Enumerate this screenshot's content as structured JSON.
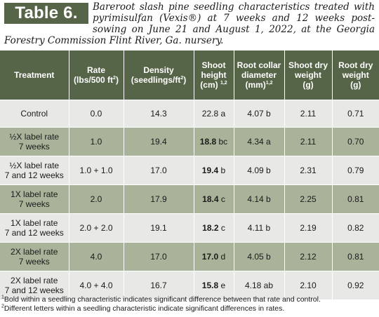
{
  "table_label": "Table 6.",
  "caption": "Bareroot slash pine seedling characteristics treated with pyrimisulfan (Vexis®) at 7 weeks and 12 weeks post-sowing on June 21 and August 1, 2022, at the Georgia Forestry Commission Flint River, Ga. nursery.",
  "headers": {
    "treatment": "Treatment",
    "rate_main": "Rate",
    "rate_unit": "(lbs/500 ft",
    "rate_unit_exp": "2",
    "rate_unit_close": ")",
    "density_main": "Density",
    "density_unit": "(seedlings/ft",
    "density_unit_exp": "2",
    "density_unit_close": ")",
    "shoot_height_main": "Shoot height",
    "shoot_height_unit": "(cm)",
    "shoot_height_sup": "1,2",
    "root_collar_main": "Root collar diameter",
    "root_collar_unit": "(mm)",
    "root_collar_sup": "1,2",
    "shoot_dry_main": "Shoot dry weight",
    "shoot_dry_unit": "(g)",
    "root_dry_main": "Root dry weight",
    "root_dry_unit": "(g)"
  },
  "rows": [
    {
      "treatment_l1": "Control",
      "treatment_l2": "",
      "rate": "0.0",
      "density": "14.3",
      "shoot_val": "22.8",
      "shoot_letter": "a",
      "shoot_bold": false,
      "root_collar": "4.07 b",
      "shoot_dry": "2.11",
      "root_dry": "0.71"
    },
    {
      "treatment_l1": "½X label rate",
      "treatment_l2": "7 weeks",
      "rate": "1.0",
      "density": "19.4",
      "shoot_val": "18.8",
      "shoot_letter": "bc",
      "shoot_bold": true,
      "root_collar": "4.34 a",
      "shoot_dry": "2.11",
      "root_dry": "0.70"
    },
    {
      "treatment_l1": "½X label rate",
      "treatment_l2": "7 and 12 weeks",
      "rate": "1.0 + 1.0",
      "density": "17.0",
      "shoot_val": "19.4",
      "shoot_letter": "b",
      "shoot_bold": true,
      "root_collar": "4.09 b",
      "shoot_dry": "2.31",
      "root_dry": "0.79"
    },
    {
      "treatment_l1": "1X label rate",
      "treatment_l2": "7 weeks",
      "rate": "2.0",
      "density": "17.9",
      "shoot_val": "18.4",
      "shoot_letter": "c",
      "shoot_bold": true,
      "root_collar": "4.14 b",
      "shoot_dry": "2.25",
      "root_dry": "0.81"
    },
    {
      "treatment_l1": "1X label rate",
      "treatment_l2": "7 and 12 weeks",
      "rate": "2.0 + 2.0",
      "density": "19.1",
      "shoot_val": "18.2",
      "shoot_letter": "c",
      "shoot_bold": true,
      "root_collar": "4.11 b",
      "shoot_dry": "2.19",
      "root_dry": "0.82"
    },
    {
      "treatment_l1": "2X label rate",
      "treatment_l2": "7 weeks",
      "rate": "4.0",
      "density": "17.0",
      "shoot_val": "17.0",
      "shoot_letter": "d",
      "shoot_bold": true,
      "root_collar": "4.05 b",
      "shoot_dry": "2.12",
      "root_dry": "0.81"
    },
    {
      "treatment_l1": "2X label rate",
      "treatment_l2": "7 and 12 weeks",
      "rate": "4.0 + 4.0",
      "density": "16.7",
      "shoot_val": "15.8",
      "shoot_letter": "e",
      "shoot_bold": true,
      "root_collar": "4.18 ab",
      "shoot_dry": "2.10",
      "root_dry": "0.92"
    }
  ],
  "footnotes": [
    {
      "mark": "1",
      "text": "Bold within a seedling characteristic indicates significant difference between that rate and control."
    },
    {
      "mark": "2",
      "text": "Different letters within a seedling characteristic indicate significant differences in rates."
    }
  ],
  "colors": {
    "header_green": "#566447",
    "row_light": "#e8e8e6",
    "row_dark": "#a9b39a"
  }
}
